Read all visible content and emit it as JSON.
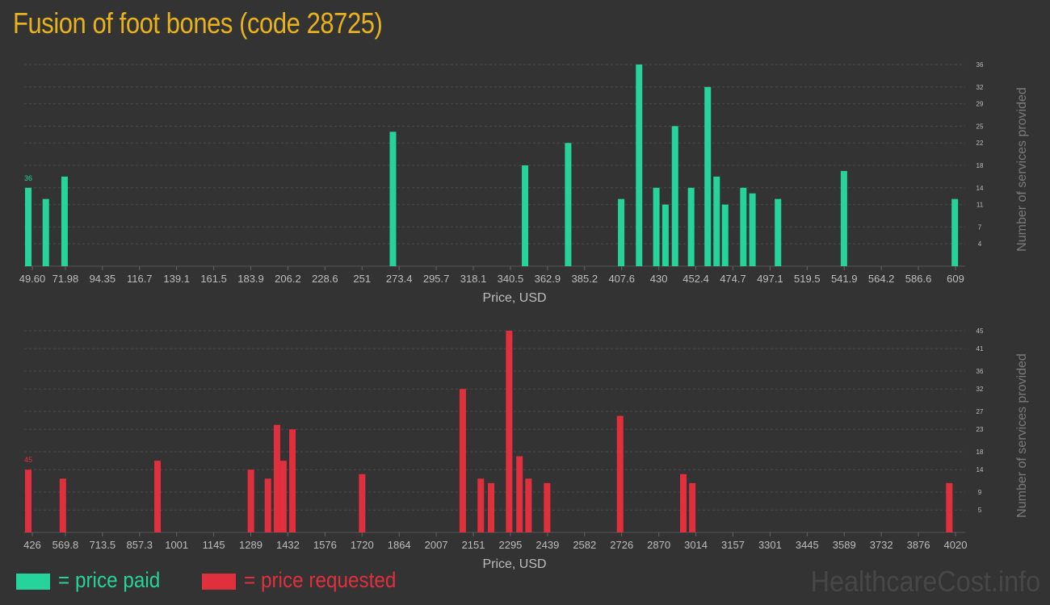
{
  "title": "Fusion of foot bones (code 28725)",
  "colors": {
    "paid": "#26d39b",
    "requested": "#e0303e",
    "title": "#e8b21c",
    "background": "#333333"
  },
  "legend": {
    "paid_label": "= price paid",
    "requested_label": "= price requested"
  },
  "watermark": "HealthcareCost.info",
  "chart_data": [
    {
      "type": "bar",
      "name": "price paid",
      "xlabel": "Price, USD",
      "ylabel": "Number of services provided",
      "xlim": [
        49.6,
        609
      ],
      "ylim": [
        0,
        36
      ],
      "x_ticks": [
        "49.60",
        "71.98",
        "94.35",
        "116.7",
        "139.1",
        "161.5",
        "183.9",
        "206.2",
        "228.6",
        "251",
        "273.4",
        "295.7",
        "318.1",
        "340.5",
        "362.9",
        "385.2",
        "407.6",
        "430",
        "452.4",
        "474.7",
        "497.1",
        "519.5",
        "541.9",
        "564.2",
        "586.6",
        "609"
      ],
      "y_ticks": [
        "4",
        "7",
        "11",
        "14",
        "18",
        "22",
        "25",
        "29",
        "32",
        "36"
      ],
      "peak_label": "36",
      "bars": [
        {
          "x": 49.6,
          "y": 14
        },
        {
          "x": 60.2,
          "y": 12
        },
        {
          "x": 71.5,
          "y": 16
        },
        {
          "x": 269.6,
          "y": 24
        },
        {
          "x": 349.3,
          "y": 18
        },
        {
          "x": 375.3,
          "y": 22
        },
        {
          "x": 407.3,
          "y": 12
        },
        {
          "x": 418.1,
          "y": 36
        },
        {
          "x": 428.5,
          "y": 14
        },
        {
          "x": 434.0,
          "y": 11
        },
        {
          "x": 439.8,
          "y": 25
        },
        {
          "x": 449.5,
          "y": 14
        },
        {
          "x": 459.5,
          "y": 32
        },
        {
          "x": 464.9,
          "y": 16
        },
        {
          "x": 470.0,
          "y": 11
        },
        {
          "x": 481.0,
          "y": 14
        },
        {
          "x": 486.5,
          "y": 13
        },
        {
          "x": 501.9,
          "y": 12
        },
        {
          "x": 541.7,
          "y": 17
        },
        {
          "x": 608.6,
          "y": 12
        }
      ]
    },
    {
      "type": "bar",
      "name": "price requested",
      "xlabel": "Price, USD",
      "ylabel": "Number of services provided",
      "xlim": [
        426,
        4020
      ],
      "ylim": [
        0,
        45
      ],
      "x_ticks": [
        "426",
        "569.8",
        "713.5",
        "857.3",
        "1001",
        "1145",
        "1289",
        "1432",
        "1576",
        "1720",
        "1864",
        "2007",
        "2151",
        "2295",
        "2439",
        "2582",
        "2726",
        "2870",
        "3014",
        "3157",
        "3301",
        "3445",
        "3589",
        "3732",
        "3876",
        "4020"
      ],
      "y_ticks": [
        "5",
        "9",
        "14",
        "18",
        "23",
        "27",
        "32",
        "36",
        "41",
        "45"
      ],
      "peak_label": "45",
      "bars": [
        {
          "x": 426,
          "y": 14
        },
        {
          "x": 560,
          "y": 12
        },
        {
          "x": 927,
          "y": 16
        },
        {
          "x": 1289,
          "y": 14
        },
        {
          "x": 1355,
          "y": 12
        },
        {
          "x": 1390,
          "y": 24
        },
        {
          "x": 1415,
          "y": 16
        },
        {
          "x": 1450,
          "y": 23
        },
        {
          "x": 1720,
          "y": 13
        },
        {
          "x": 2110,
          "y": 32
        },
        {
          "x": 2180,
          "y": 12
        },
        {
          "x": 2220,
          "y": 11
        },
        {
          "x": 2290,
          "y": 45
        },
        {
          "x": 2330,
          "y": 17
        },
        {
          "x": 2365,
          "y": 12
        },
        {
          "x": 2437,
          "y": 11
        },
        {
          "x": 2720,
          "y": 26
        },
        {
          "x": 2965,
          "y": 13
        },
        {
          "x": 3000,
          "y": 11
        },
        {
          "x": 3996,
          "y": 11
        }
      ]
    }
  ]
}
